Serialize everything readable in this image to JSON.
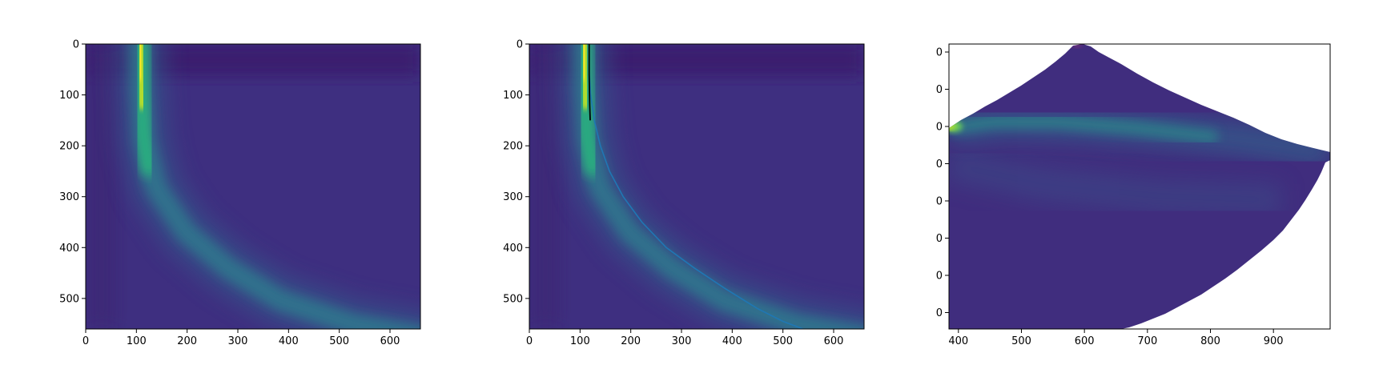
{
  "chart_data": [
    {
      "type": "heatmap",
      "title": "",
      "xlabel": "",
      "ylabel": "",
      "colormap": "viridis",
      "xlim": [
        0,
        660
      ],
      "ylim": [
        560,
        0
      ],
      "xticks": [
        0,
        100,
        200,
        300,
        400,
        500,
        600
      ],
      "yticks": [
        0,
        100,
        200,
        300,
        400,
        500
      ],
      "xtick_labels": [
        "0",
        "100",
        "200",
        "300",
        "400",
        "500",
        "600"
      ],
      "ytick_labels": [
        "0",
        "100",
        "200",
        "300",
        "400",
        "500"
      ],
      "features": {
        "bright_column_center_x": 108,
        "ridge_path": [
          [
            108,
            0
          ],
          [
            110,
            100
          ],
          [
            118,
            200
          ],
          [
            150,
            300
          ],
          [
            230,
            400
          ],
          [
            360,
            480
          ],
          [
            530,
            560
          ]
        ],
        "max_intensity_range_y": [
          0,
          60
        ]
      }
    },
    {
      "type": "heatmap",
      "title": "",
      "xlabel": "",
      "ylabel": "",
      "colormap": "viridis",
      "xlim": [
        0,
        660
      ],
      "ylim": [
        560,
        0
      ],
      "xticks": [
        0,
        100,
        200,
        300,
        400,
        500,
        600
      ],
      "yticks": [
        0,
        100,
        200,
        300,
        400,
        500
      ],
      "xtick_labels": [
        "0",
        "100",
        "200",
        "300",
        "400",
        "500",
        "600"
      ],
      "ytick_labels": [
        "0",
        "100",
        "200",
        "300",
        "400",
        "500"
      ],
      "overlay_lines": [
        {
          "color": "#1f77b4",
          "x": [
            118,
            118,
            121,
            128,
            140,
            158,
            185,
            222,
            270,
            325,
            385,
            450,
            500,
            540
          ],
          "y": [
            0,
            50,
            100,
            150,
            200,
            250,
            300,
            350,
            400,
            440,
            480,
            520,
            545,
            560
          ]
        },
        {
          "color": "#000000",
          "x": [
            118,
            118,
            119,
            120
          ],
          "y": [
            0,
            60,
            120,
            150
          ]
        }
      ]
    },
    {
      "type": "heatmap",
      "title": "",
      "xlabel": "",
      "ylabel": "",
      "colormap": "viridis",
      "xlim": [
        385,
        990
      ],
      "xticks": [
        400,
        500,
        600,
        700,
        800,
        900
      ],
      "xtick_labels": [
        "400",
        "500",
        "600",
        "700",
        "800",
        "900"
      ],
      "ytick_count": 8,
      "ytick_labels": [
        "0",
        "0",
        "0",
        "0",
        "0",
        "0",
        "0",
        "0"
      ],
      "masked_region_color": "#ffffff",
      "features": {
        "bright_spot_x": 385,
        "peak_top_x": 592
      }
    }
  ]
}
